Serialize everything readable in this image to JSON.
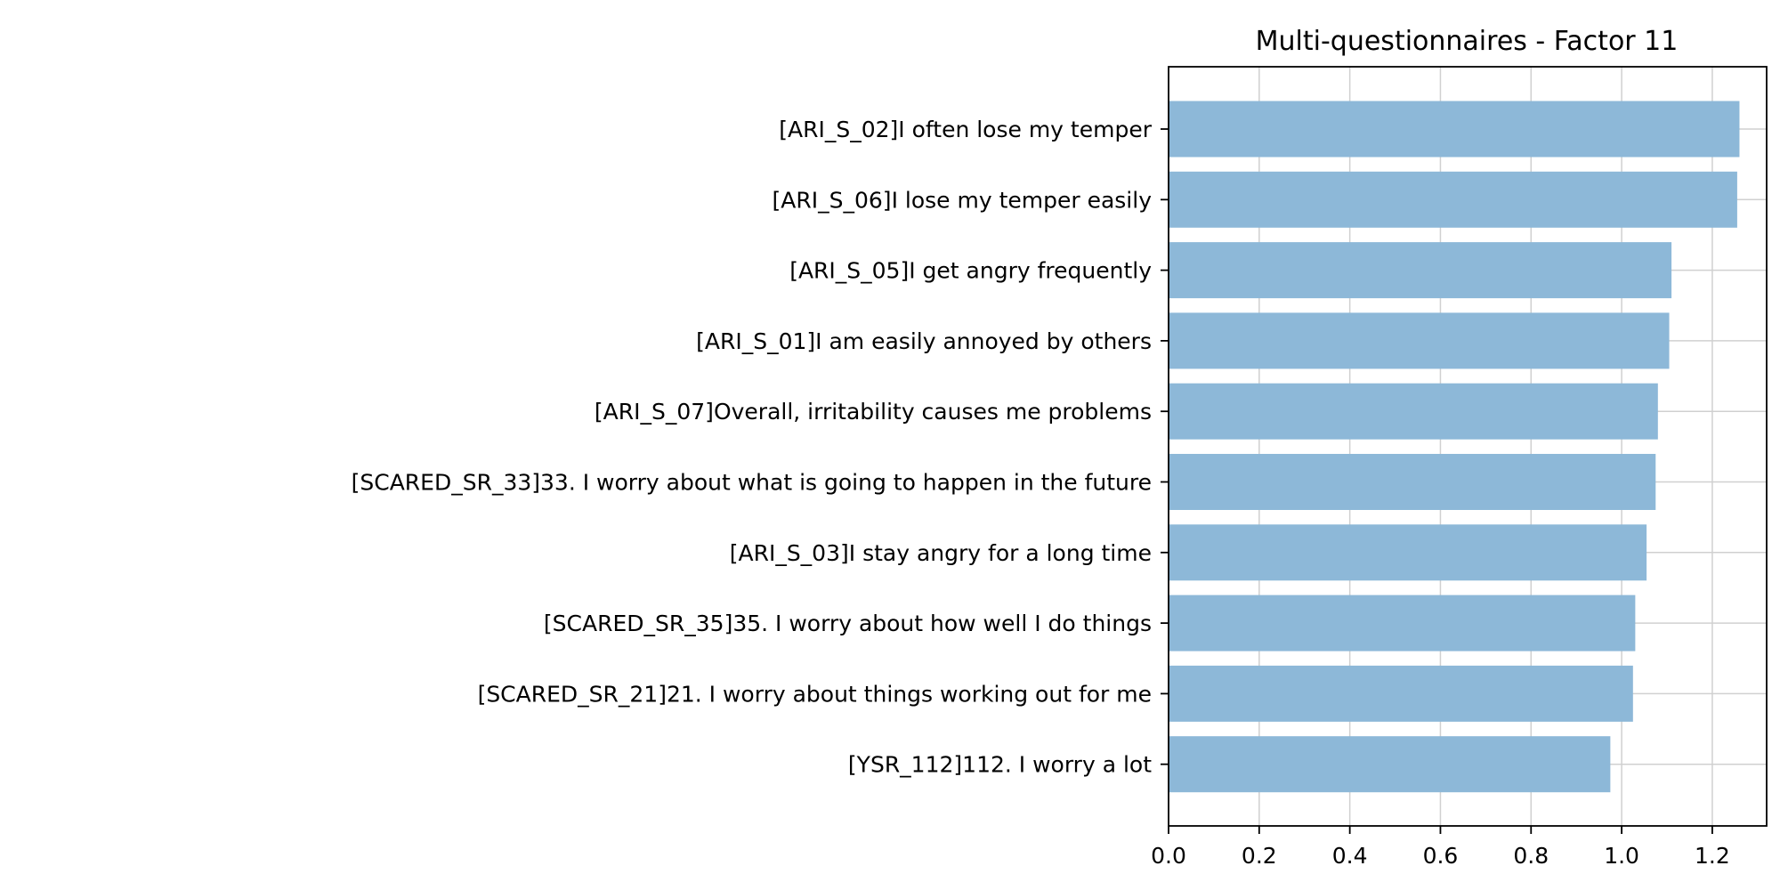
{
  "chart_data": {
    "type": "bar",
    "orientation": "horizontal",
    "title": "Multi-questionnaires - Factor 11",
    "xlabel": "",
    "ylabel": "",
    "categories": [
      "[ARI_S_02]I often lose my temper",
      "[ARI_S_06]I lose my temper easily",
      "[ARI_S_05]I get angry frequently",
      "[ARI_S_01]I am easily annoyed by others",
      "[ARI_S_07]Overall, irritability causes me problems",
      "[SCARED_SR_33]33. I worry about what is going to happen in the future",
      "[ARI_S_03]I stay angry for a long time",
      "[SCARED_SR_35]35. I worry about how well I do things",
      "[SCARED_SR_21]21. I worry about things working out for me",
      "[YSR_112]112. I worry a lot"
    ],
    "values": [
      1.26,
      1.255,
      1.11,
      1.105,
      1.08,
      1.075,
      1.055,
      1.03,
      1.025,
      0.975
    ],
    "xlim": [
      0,
      1.32
    ],
    "xticks": [
      "0.0",
      "0.2",
      "0.4",
      "0.6",
      "0.8",
      "1.0",
      "1.2"
    ],
    "grid": true,
    "bar_color": "#8db8d8"
  }
}
